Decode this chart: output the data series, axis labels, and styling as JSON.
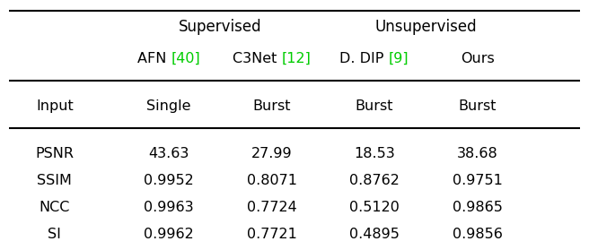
{
  "title_supervised": "Supervised",
  "title_unsupervised": "Unsupervised",
  "col_headers": [
    "AFN [40]",
    "C3Net [12]",
    "D. DIP [9]",
    "Ours"
  ],
  "col_header_colors": [
    "black",
    "black",
    "black",
    "black"
  ],
  "ref_colors": [
    "#00cc00",
    "#00cc00",
    "#00cc00",
    "black"
  ],
  "input_row": [
    "Input",
    "Single",
    "Burst",
    "Burst",
    "Burst"
  ],
  "rows": [
    [
      "PSNR",
      "43.63",
      "27.99",
      "18.53",
      "38.68"
    ],
    [
      "SSIM",
      "0.9952",
      "0.8071",
      "0.8762",
      "0.9751"
    ],
    [
      "NCC",
      "0.9963",
      "0.7724",
      "0.5120",
      "0.9865"
    ],
    [
      "SI",
      "0.9962",
      "0.7721",
      "0.4895",
      "0.9856"
    ]
  ],
  "bg_color": "#ffffff",
  "text_color": "#000000",
  "font_size": 11.5,
  "header_font_size": 12
}
